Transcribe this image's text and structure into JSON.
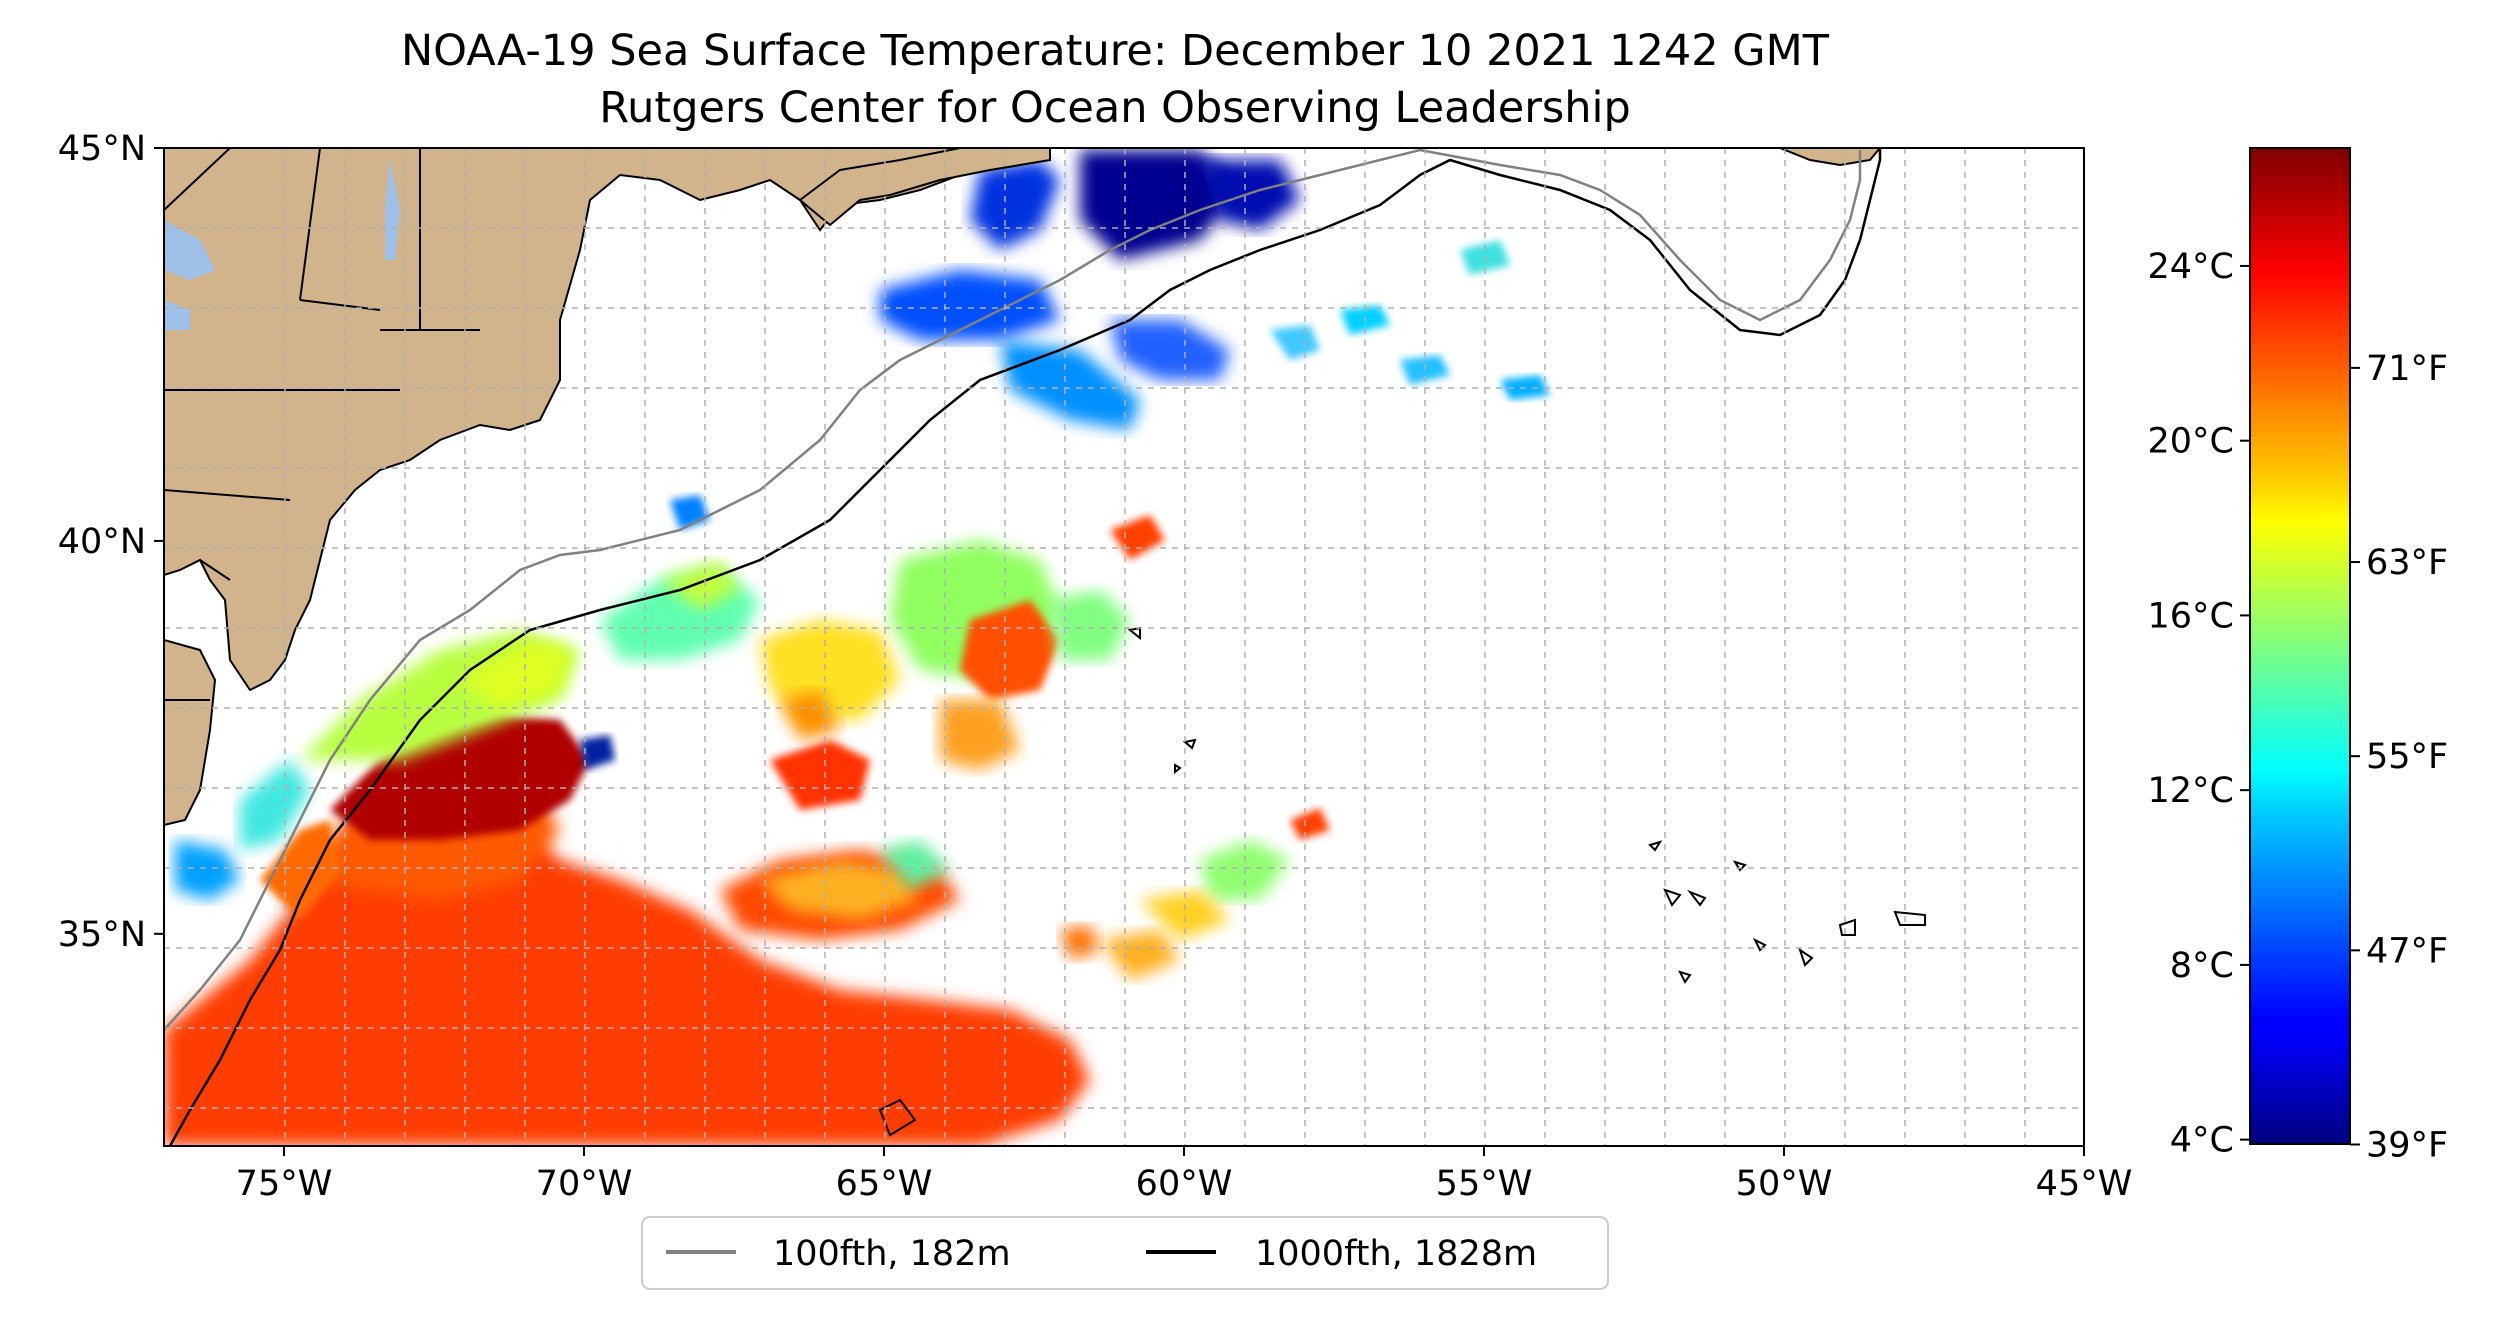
{
  "title": {
    "line1": "NOAA-19 Sea Surface Temperature: December 10 2021 1242 GMT",
    "line2": "Rutgers Center for Ocean Observing Leadership"
  },
  "map": {
    "lon_range": [
      -77,
      -45
    ],
    "lat_range": [
      32.3,
      45
    ],
    "x_ticks": [
      {
        "lon": -75,
        "label": "75°W"
      },
      {
        "lon": -70,
        "label": "70°W"
      },
      {
        "lon": -65,
        "label": "65°W"
      },
      {
        "lon": -60,
        "label": "60°W"
      },
      {
        "lon": -55,
        "label": "55°W"
      },
      {
        "lon": -50,
        "label": "50°W"
      },
      {
        "lon": -45,
        "label": "45°W"
      }
    ],
    "y_ticks": [
      {
        "lat": 45,
        "label": "45°N"
      },
      {
        "lat": 40,
        "label": "40°N"
      },
      {
        "lat": 35,
        "label": "35°N"
      }
    ],
    "gridlines": true,
    "land_color": "#d2b48c",
    "lake_color": "#9fc0e8"
  },
  "colorbar": {
    "colormap": "jet",
    "celsius_range": [
      3.9,
      26.7
    ],
    "celsius_ticks": [
      {
        "value": 4,
        "label": "4°C"
      },
      {
        "value": 8,
        "label": "8°C"
      },
      {
        "value": 12,
        "label": "12°C"
      },
      {
        "value": 16,
        "label": "16°C"
      },
      {
        "value": 20,
        "label": "20°C"
      },
      {
        "value": 24,
        "label": "24°C"
      }
    ],
    "fahrenheit_ticks": [
      {
        "value": 39,
        "label": "39°F"
      },
      {
        "value": 47,
        "label": "47°F"
      },
      {
        "value": 55,
        "label": "55°F"
      },
      {
        "value": 63,
        "label": "63°F"
      },
      {
        "value": 71,
        "label": "71°F"
      }
    ]
  },
  "legend": {
    "placement": "below map",
    "items": [
      {
        "label": "100fth, 182m",
        "color": "#808080"
      },
      {
        "label": "1000fth, 1828m",
        "color": "#000000"
      }
    ]
  }
}
